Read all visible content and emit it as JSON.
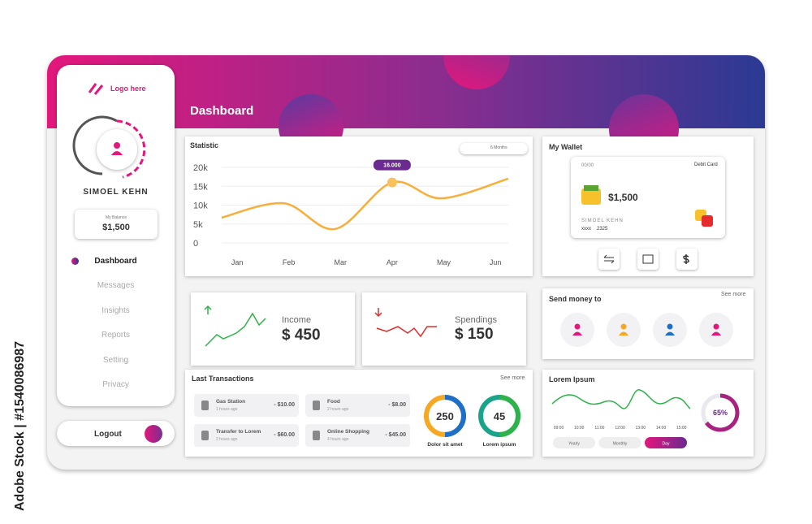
{
  "watermark": "Adobe Stock | #1540086987",
  "logo": "Logo here",
  "header_title": "Dashboard",
  "profile": {
    "name": "SIMOEL KEHN",
    "balance_label": "My Balance",
    "balance": "$1,500"
  },
  "nav": [
    "Dashboard",
    "Messages",
    "Insights",
    "Reports",
    "Setting",
    "Privacy"
  ],
  "logout": "Logout",
  "statistic": {
    "title": "Statistic",
    "period": "6 Months",
    "chart_data": {
      "type": "line",
      "x": [
        -0.3,
        0.9,
        1.9,
        3,
        3.95,
        5.25
      ],
      "values": [
        6700,
        10500,
        3700,
        16000,
        11800,
        17000
      ],
      "color": "#f7ae3b",
      "xlim": [
        -0.3,
        5.25
      ],
      "xticks": [
        {
          "value": 0,
          "label": "Jan"
        },
        {
          "value": 1,
          "label": "Feb"
        },
        {
          "value": 2,
          "label": "Mar"
        },
        {
          "value": 3,
          "label": "Apr"
        },
        {
          "value": 4,
          "label": "May"
        },
        {
          "value": 5,
          "label": "Jun"
        }
      ],
      "ylim": [
        0,
        20000
      ],
      "yticks": [
        {
          "value": 0,
          "label": "0"
        },
        {
          "value": 5000,
          "label": "5k"
        },
        {
          "value": 10000,
          "label": "10k"
        },
        {
          "value": 15000,
          "label": "15k"
        },
        {
          "value": 20000,
          "label": "20k"
        }
      ],
      "grid": true,
      "value_labels": [
        null,
        null,
        null,
        "16.000",
        null,
        null
      ]
    }
  },
  "income": {
    "label": "Income",
    "amount": "$ 450"
  },
  "spendings": {
    "label": "Spendings",
    "amount": "$ 150"
  },
  "transactions": {
    "title": "Last Transactions",
    "see_more": "See more",
    "items": [
      {
        "name": "Gas Station",
        "time": "1 hours ago",
        "amount": "- $10.00"
      },
      {
        "name": "Food",
        "time": "2 hours ago",
        "amount": "- $8.00"
      },
      {
        "name": "Transfer to Lorem",
        "time": "2 hours ago",
        "amount": "- $60.00"
      },
      {
        "name": "Online Shopping",
        "time": "4 hours ago",
        "amount": "- $45.00"
      }
    ],
    "donuts": [
      {
        "value": "250",
        "label": "Dolor sit amet"
      },
      {
        "value": "45",
        "label": "Lorem ipsum"
      }
    ]
  },
  "wallet": {
    "title": "My Wallet",
    "expiry": "00/00",
    "card_type": "Debit Card",
    "balance": "$1,500",
    "holder": "SIMOEL KEHN",
    "number_mask": "xxxx",
    "number_last": "2325"
  },
  "send_money": {
    "title": "Send money to",
    "see_more": "See more"
  },
  "lorem": {
    "title": "Lorem Ipsum",
    "times": [
      "09:00",
      "10:00",
      "11:00",
      "12:00",
      "13:00",
      "14:00",
      "15:00"
    ],
    "buttons": [
      "Yearly",
      "Monthly",
      "Day"
    ],
    "progress": {
      "value": 65,
      "label": "65%"
    }
  }
}
